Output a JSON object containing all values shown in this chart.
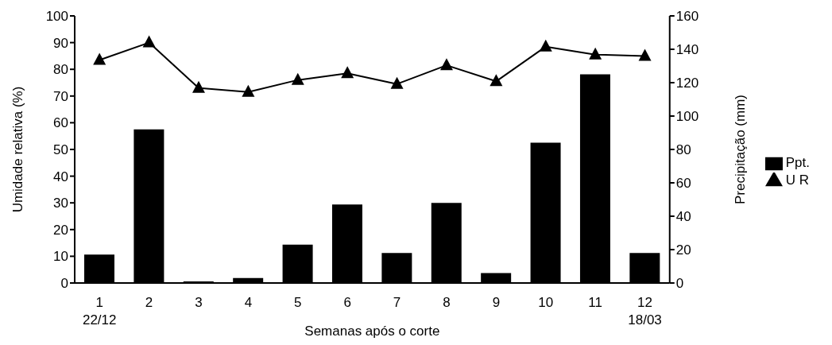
{
  "chart_data": {
    "type": "bar",
    "xlabel": "Semanas após o corte",
    "ylabel": "Umidade relativa (%)",
    "y2label": "Precipitação (mm)",
    "categories": [
      "1",
      "2",
      "3",
      "4",
      "5",
      "6",
      "7",
      "8",
      "9",
      "10",
      "11",
      "12"
    ],
    "series": [
      {
        "name": "Ppt.",
        "axis": "y2",
        "color": "#000000",
        "values": [
          17,
          92,
          1,
          3,
          23,
          47,
          18,
          48,
          6,
          84,
          125,
          18
        ]
      },
      {
        "name": "U R",
        "type": "line",
        "axis": "y",
        "color": "#000000",
        "marker": "triangle",
        "values": [
          83.5,
          90,
          73,
          71.5,
          76,
          78.5,
          74.5,
          81.5,
          75.5,
          88.5,
          85.5,
          85
        ]
      }
    ],
    "ylim": [
      0,
      100
    ],
    "yticks": [
      0,
      10,
      20,
      30,
      40,
      50,
      60,
      70,
      80,
      90,
      100
    ],
    "y2lim": [
      0,
      160
    ],
    "y2ticks": [
      0,
      20,
      40,
      60,
      80,
      100,
      120,
      140,
      160
    ],
    "annotations": [
      "22/12",
      "18/03"
    ],
    "legend": "right",
    "grid": false
  }
}
